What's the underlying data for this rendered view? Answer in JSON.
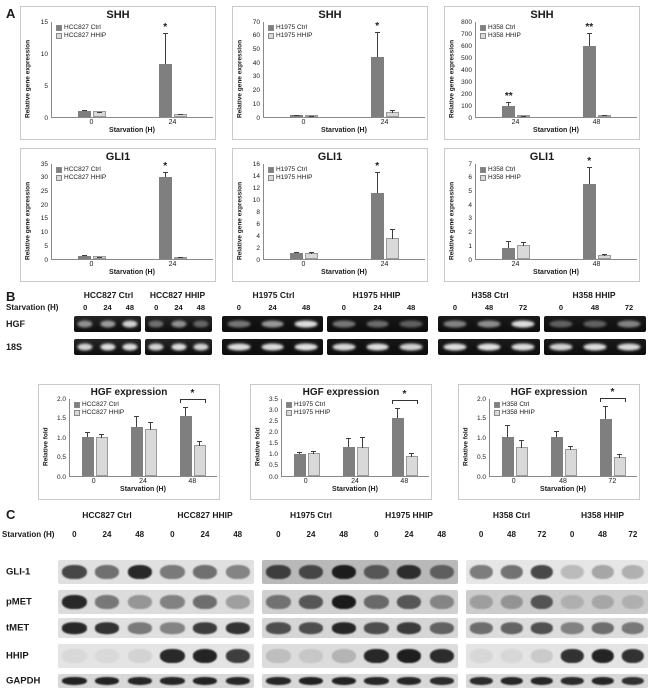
{
  "panel_labels": {
    "a": "A",
    "b": "B",
    "c": "C"
  },
  "colors": {
    "ctrl": "#7f7f7f",
    "hhip": "#d9d9d9",
    "axis": "#8a8a8a"
  },
  "chart_data": [
    {
      "id": "shh-hcc827",
      "panel": "A",
      "type": "bar",
      "title": "SHH",
      "ylabel": "Relative gene expression",
      "xlabel": "Starvation (H)",
      "ymax": 15,
      "ystep": 5,
      "ydec": 0,
      "categories": [
        "0",
        "24"
      ],
      "series": [
        {
          "name": "HCC827 Ctrl",
          "color": "#7f7f7f",
          "values": [
            1.0,
            8.3
          ],
          "errors": [
            0.15,
            4.8
          ]
        },
        {
          "name": "HCC827 HHIP",
          "color": "#d9d9d9",
          "values": [
            0.9,
            0.45
          ],
          "errors": [
            0.1,
            0.2
          ]
        }
      ],
      "stars": [
        {
          "cat": 1,
          "series": 0,
          "label": "*"
        }
      ]
    },
    {
      "id": "shh-h1975",
      "panel": "A",
      "type": "bar",
      "title": "SHH",
      "ylabel": "Relative gene expression",
      "xlabel": "Starvation (H)",
      "ymax": 70,
      "ystep": 10,
      "ydec": 0,
      "categories": [
        "0",
        "24"
      ],
      "series": [
        {
          "name": "H1975 Ctrl",
          "color": "#7f7f7f",
          "values": [
            1.2,
            44.0
          ],
          "errors": [
            0.3,
            18.0
          ]
        },
        {
          "name": "H1975 HHIP",
          "color": "#d9d9d9",
          "values": [
            1.0,
            3.5
          ],
          "errors": [
            0.3,
            2.0
          ]
        }
      ],
      "stars": [
        {
          "cat": 1,
          "series": 0,
          "label": "*"
        }
      ]
    },
    {
      "id": "shh-h358",
      "panel": "A",
      "type": "bar",
      "title": "SHH",
      "ylabel": "Relative gene expression",
      "xlabel": "Starvation (H)",
      "ymax": 800,
      "ystep": 100,
      "ydec": 0,
      "categories": [
        "24",
        "48"
      ],
      "series": [
        {
          "name": "H358 Ctrl",
          "color": "#7f7f7f",
          "values": [
            95,
            590
          ],
          "errors": [
            30,
            110
          ]
        },
        {
          "name": "H358 HHIP",
          "color": "#d9d9d9",
          "values": [
            6,
            10
          ],
          "errors": [
            3,
            5
          ]
        }
      ],
      "stars": [
        {
          "cat": 0,
          "series": 0,
          "label": "**"
        },
        {
          "cat": 1,
          "series": 0,
          "label": "**"
        }
      ]
    },
    {
      "id": "gli1-hcc827",
      "panel": "A",
      "type": "bar",
      "title": "GLI1",
      "ylabel": "Relative gene expression",
      "xlabel": "Starvation (H)",
      "ymax": 35,
      "ystep": 5,
      "ydec": 0,
      "categories": [
        "0",
        "24"
      ],
      "series": [
        {
          "name": "HCC827 Ctrl",
          "color": "#7f7f7f",
          "values": [
            1.2,
            30.0
          ],
          "errors": [
            0.2,
            1.8
          ]
        },
        {
          "name": "HCC827 HHIP",
          "color": "#d9d9d9",
          "values": [
            1.0,
            0.6
          ],
          "errors": [
            0.15,
            0.2
          ]
        }
      ],
      "stars": [
        {
          "cat": 1,
          "series": 0,
          "label": "*"
        }
      ]
    },
    {
      "id": "gli1-h1975",
      "panel": "A",
      "type": "bar",
      "title": "GLI1",
      "ylabel": "Relative gene expression",
      "xlabel": "Starvation (H)",
      "ymax": 16,
      "ystep": 2,
      "ydec": 0,
      "categories": [
        "0",
        "24"
      ],
      "series": [
        {
          "name": "H1975 Ctrl",
          "color": "#7f7f7f",
          "values": [
            1.0,
            11.0
          ],
          "errors": [
            0.2,
            3.5
          ]
        },
        {
          "name": "H1975 HHIP",
          "color": "#d9d9d9",
          "values": [
            1.0,
            3.5
          ],
          "errors": [
            0.3,
            1.6
          ]
        }
      ],
      "stars": [
        {
          "cat": 1,
          "series": 0,
          "label": "*"
        }
      ]
    },
    {
      "id": "gli1-h358",
      "panel": "A",
      "type": "bar",
      "title": "GLI1",
      "ylabel": "Relative gene expression",
      "xlabel": "Starvation (H)",
      "ymax": 7,
      "ystep": 1,
      "ydec": 0,
      "categories": [
        "24",
        "48"
      ],
      "series": [
        {
          "name": "H358 Ctrl",
          "color": "#7f7f7f",
          "values": [
            0.8,
            5.5
          ],
          "errors": [
            0.5,
            1.2
          ]
        },
        {
          "name": "H358 HHIP",
          "color": "#d9d9d9",
          "values": [
            1.05,
            0.3
          ],
          "errors": [
            0.3,
            0.15
          ]
        }
      ],
      "stars": [
        {
          "cat": 1,
          "series": 0,
          "label": "*"
        }
      ]
    },
    {
      "id": "hgf-hcc827",
      "panel": "B",
      "type": "bar",
      "title": "HGF expression",
      "ylabel": "Relative fold",
      "xlabel": "Starvation (H)",
      "ymax": 2,
      "ystep": 0.5,
      "ydec": 1,
      "categories": [
        "0",
        "24",
        "48"
      ],
      "series": [
        {
          "name": "HCC827 Ctrl",
          "color": "#7f7f7f",
          "values": [
            1.0,
            1.25,
            1.55
          ],
          "errors": [
            0.12,
            0.28,
            0.22
          ]
        },
        {
          "name": "HCC827 HHIP",
          "color": "#d9d9d9",
          "values": [
            1.0,
            1.2,
            0.8
          ],
          "errors": [
            0.1,
            0.22,
            0.12
          ]
        }
      ],
      "bracket": {
        "cat": 2,
        "label": "*"
      }
    },
    {
      "id": "hgf-h1975",
      "panel": "B",
      "type": "bar",
      "title": "HGF expression",
      "ylabel": "Relative fold",
      "xlabel": "Starvation (H)",
      "ymax": 3.5,
      "ystep": 0.5,
      "ydec": 1,
      "categories": [
        "0",
        "24",
        "48"
      ],
      "series": [
        {
          "name": "H1975 Ctrl",
          "color": "#7f7f7f",
          "values": [
            1.0,
            1.3,
            2.6
          ],
          "errors": [
            0.08,
            0.42,
            0.45
          ]
        },
        {
          "name": "H1975 HHIP",
          "color": "#d9d9d9",
          "values": [
            1.05,
            1.3,
            0.9
          ],
          "errors": [
            0.1,
            0.5,
            0.2
          ]
        }
      ],
      "bracket": {
        "cat": 2,
        "label": "*"
      }
    },
    {
      "id": "hgf-h358",
      "panel": "B",
      "type": "bar",
      "title": "HGF expression",
      "ylabel": "Relative fold",
      "xlabel": "Starvation (H)",
      "ymax": 2,
      "ystep": 0.5,
      "ydec": 1,
      "categories": [
        "0",
        "48",
        "72"
      ],
      "series": [
        {
          "name": "H358 Ctrl",
          "color": "#7f7f7f",
          "values": [
            1.0,
            1.0,
            1.45
          ],
          "errors": [
            0.3,
            0.15,
            0.35
          ]
        },
        {
          "name": "H358 HHIP",
          "color": "#d9d9d9",
          "values": [
            0.75,
            0.68,
            0.5
          ],
          "errors": [
            0.2,
            0.12,
            0.1
          ]
        }
      ],
      "bracket": {
        "cat": 2,
        "label": "*"
      }
    }
  ],
  "panel_b": {
    "starvation_label": "Starvation (H)",
    "row_labels": [
      "HGF",
      "18S"
    ],
    "blocks": [
      {
        "headers": [
          "HCC827 Ctrl",
          "HCC827 HHIP"
        ],
        "lanes": [
          "0",
          "24",
          "48",
          "0",
          "24",
          "48"
        ],
        "bg": "#262626",
        "hgf": [
          0.55,
          0.6,
          0.85,
          0.4,
          0.55,
          0.35
        ],
        "s18": [
          0.85,
          0.9,
          0.9,
          0.85,
          0.9,
          0.85
        ]
      },
      {
        "headers": [
          "H1975 Ctrl",
          "H1975 HHIP"
        ],
        "lanes": [
          "0",
          "24",
          "48",
          "0",
          "24",
          "48"
        ],
        "bg": "#161616",
        "hgf": [
          0.45,
          0.6,
          0.9,
          0.45,
          0.4,
          0.35
        ],
        "s18": [
          0.9,
          0.9,
          0.92,
          0.88,
          0.9,
          0.85
        ]
      },
      {
        "headers": [
          "H358 Ctrl",
          "H358 HHIP"
        ],
        "lanes": [
          "0",
          "48",
          "72",
          "0",
          "48",
          "72"
        ],
        "bg": "#1a1a1a",
        "hgf": [
          0.5,
          0.55,
          0.9,
          0.35,
          0.35,
          0.5
        ],
        "s18": [
          0.9,
          0.92,
          0.9,
          0.85,
          0.9,
          0.88
        ]
      }
    ]
  },
  "panel_c": {
    "starvation_label": "Starvation (H)",
    "groups": [
      {
        "label": "HCC827 Ctrl",
        "lanes": [
          "0",
          "24",
          "48"
        ]
      },
      {
        "label": "HCC827 HHIP",
        "lanes": [
          "0",
          "24",
          "48"
        ]
      },
      {
        "label": "H1975 Ctrl",
        "lanes": [
          "0",
          "24",
          "48"
        ]
      },
      {
        "label": "H1975 HHIP",
        "lanes": [
          "0",
          "24",
          "48"
        ]
      },
      {
        "label": "H358 Ctrl",
        "lanes": [
          "0",
          "48",
          "72"
        ]
      },
      {
        "label": "H358 HHIP",
        "lanes": [
          "0",
          "48",
          "72"
        ]
      }
    ],
    "rows": [
      {
        "label": "GLI-1",
        "strips": [
          {
            "bg": "#e0e0e0",
            "bands": [
              0.75,
              0.55,
              0.9,
              0.5,
              0.55,
              0.45
            ]
          },
          {
            "bg": "#b9b9b9",
            "bands": [
              0.75,
              0.7,
              0.95,
              0.6,
              0.85,
              0.55
            ]
          },
          {
            "bg": "#e6e6e6",
            "bands": [
              0.5,
              0.55,
              0.75,
              0.2,
              0.3,
              0.25
            ]
          }
        ]
      },
      {
        "label": "pMET",
        "strips": [
          {
            "bg": "#dcdcdc",
            "bands": [
              0.9,
              0.5,
              0.35,
              0.45,
              0.55,
              0.3
            ]
          },
          {
            "bg": "#d0d0d0",
            "bands": [
              0.5,
              0.65,
              0.97,
              0.55,
              0.65,
              0.4
            ]
          },
          {
            "bg": "#cccccc",
            "bands": [
              0.25,
              0.3,
              0.65,
              0.15,
              0.2,
              0.15
            ]
          }
        ]
      },
      {
        "label": "tMET",
        "strips": [
          {
            "bg": "#e0e0e0",
            "bands": [
              0.9,
              0.85,
              0.5,
              0.45,
              0.8,
              0.85
            ]
          },
          {
            "bg": "#d6d6d6",
            "bands": [
              0.7,
              0.7,
              0.9,
              0.7,
              0.8,
              0.6
            ]
          },
          {
            "bg": "#dcdcdc",
            "bands": [
              0.55,
              0.6,
              0.7,
              0.45,
              0.55,
              0.5
            ]
          }
        ]
      },
      {
        "label": "HHIP",
        "strips": [
          {
            "bg": "#e4e4e4",
            "bands": [
              0.05,
              0.05,
              0.08,
              0.9,
              0.92,
              0.8
            ]
          },
          {
            "bg": "#dcdcdc",
            "bands": [
              0.15,
              0.1,
              0.2,
              0.9,
              0.95,
              0.88
            ]
          },
          {
            "bg": "#e4e4e4",
            "bands": [
              0.06,
              0.06,
              0.12,
              0.85,
              0.92,
              0.85
            ]
          }
        ]
      },
      {
        "label": "GAPDH",
        "strips": [
          {
            "bg": "#d8d8d8",
            "bands": [
              0.92,
              0.92,
              0.9,
              0.9,
              0.92,
              0.9
            ]
          },
          {
            "bg": "#d8d8d8",
            "bands": [
              0.9,
              0.92,
              0.92,
              0.9,
              0.9,
              0.88
            ]
          },
          {
            "bg": "#d8d8d8",
            "bands": [
              0.88,
              0.9,
              0.9,
              0.88,
              0.9,
              0.85
            ]
          }
        ]
      }
    ]
  }
}
